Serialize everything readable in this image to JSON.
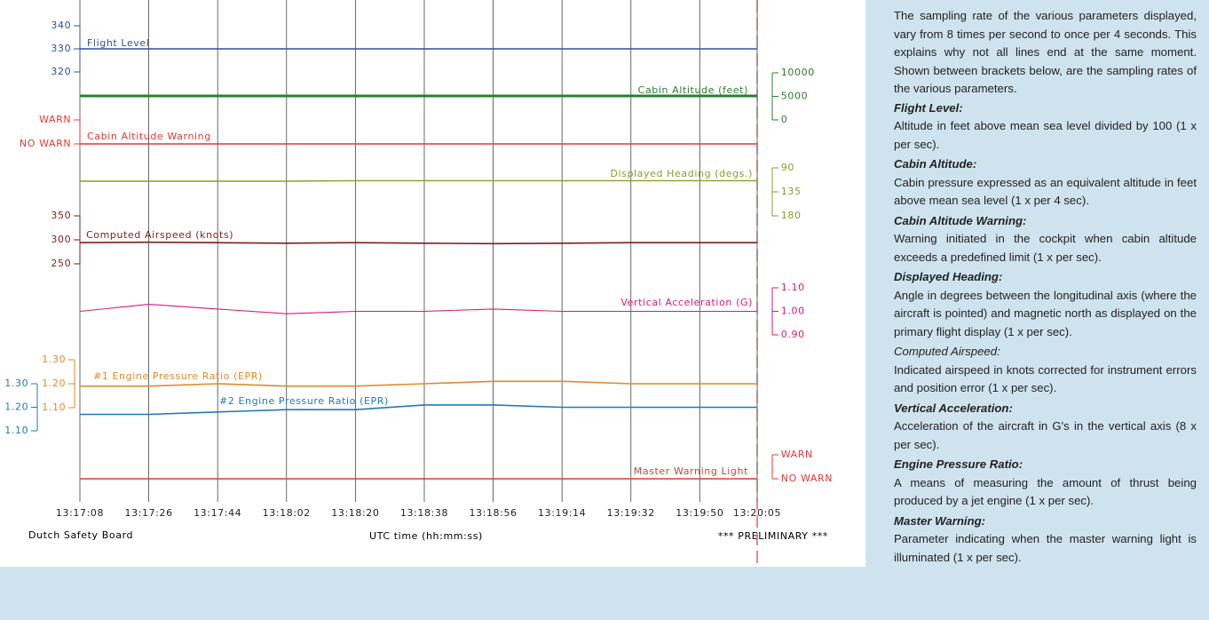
{
  "chart_data": {
    "type": "line",
    "x": [
      "13:17:08",
      "13:17:26",
      "13:17:44",
      "13:18:02",
      "13:18:20",
      "13:18:38",
      "13:18:56",
      "13:19:14",
      "13:19:32",
      "13:19:50",
      "13:20:05"
    ],
    "xlabel": "UTC time (hh:mm:ss)",
    "source": "Dutch Safety Board",
    "note": "*** PRELIMINARY ***",
    "series": [
      {
        "name": "Flight Level",
        "color": "#2f4f9f",
        "values": [
          330,
          330,
          330,
          330,
          330,
          330,
          330,
          330,
          330,
          330,
          330
        ],
        "ylim": [
          320,
          340
        ],
        "yticks": [
          320,
          330,
          340
        ]
      },
      {
        "name": "Cabin Altitude (feet)",
        "color": "#2e7d32",
        "values": [
          5100,
          5100,
          5100,
          5100,
          5100,
          5100,
          5100,
          5100,
          5100,
          5100,
          5100
        ],
        "ylim": [
          0,
          10000
        ],
        "yticks": [
          0,
          5000,
          10000
        ]
      },
      {
        "name": "Cabin Altitude Warning",
        "color": "#e53935",
        "values": [
          0,
          0,
          0,
          0,
          0,
          0,
          0,
          0,
          0,
          0,
          0
        ],
        "ylim": [
          0,
          1
        ],
        "yticks": [
          {
            "value": 1,
            "label": "WARN"
          },
          {
            "value": 0,
            "label": "NO WARN"
          }
        ]
      },
      {
        "name": "Displayed Heading (degs.)",
        "color": "#8d9b2c",
        "values": [
          115,
          115,
          115,
          115,
          114,
          114,
          114,
          114,
          114,
          114,
          114
        ],
        "ylim": [
          180,
          90
        ],
        "yticks": [
          90,
          135,
          180
        ]
      },
      {
        "name": "Computed Airspeed (knots)",
        "color": "#7a1f1f",
        "values": [
          294,
          295,
          294,
          293,
          294,
          293,
          292,
          293,
          294,
          294,
          294
        ],
        "ylim": [
          250,
          350
        ],
        "yticks": [
          250,
          300,
          350
        ]
      },
      {
        "name": "Vertical Acceleration (G)",
        "color": "#d81b7a",
        "values": [
          1.0,
          1.03,
          1.01,
          0.99,
          1.0,
          1.0,
          1.01,
          1.0,
          1.0,
          1.0,
          1.0
        ],
        "ylim": [
          0.9,
          1.1
        ],
        "yticks": [
          {
            "value": 1.1,
            "label": "1.10"
          },
          {
            "value": 1.0,
            "label": "1.00"
          },
          {
            "value": 0.9,
            "label": "0.90"
          }
        ]
      },
      {
        "name": "#1 Engine Pressure Ratio (EPR)",
        "color": "#e08a2a",
        "values": [
          1.19,
          1.19,
          1.2,
          1.19,
          1.19,
          1.2,
          1.21,
          1.21,
          1.2,
          1.2,
          1.2
        ],
        "ylim": [
          1.1,
          1.3
        ],
        "yticks": [
          {
            "value": 1.3,
            "label": "1.30"
          },
          {
            "value": 1.2,
            "label": "1.20"
          },
          {
            "value": 1.1,
            "label": "1.10"
          }
        ]
      },
      {
        "name": "#2 Engine Pressure Ratio (EPR)",
        "color": "#1f7ab8",
        "values": [
          1.17,
          1.17,
          1.18,
          1.19,
          1.19,
          1.21,
          1.21,
          1.2,
          1.2,
          1.2,
          1.2
        ],
        "ylim": [
          1.1,
          1.3
        ],
        "yticks": [
          {
            "value": 1.3,
            "label": "1.30"
          },
          {
            "value": 1.2,
            "label": "1.20"
          },
          {
            "value": 1.1,
            "label": "1.10"
          }
        ]
      },
      {
        "name": "Master Warning Light",
        "color": "#e53935",
        "values": [
          0,
          0,
          0,
          0,
          0,
          0,
          0,
          0,
          0,
          0,
          0
        ],
        "ylim": [
          0,
          1
        ],
        "yticks": [
          {
            "value": 1,
            "label": "WARN"
          },
          {
            "value": 0,
            "label": "NO WARN"
          }
        ]
      }
    ]
  },
  "notes": {
    "intro": "The sampling rate of the various parameters displayed, vary from 8 times per second to once per 4 seconds. This explains why not all lines end at the same moment. Shown between brackets below, are the sampling rates of the various parameters.",
    "items": [
      {
        "heading": "Flight Level:",
        "text": "Altitude in feet above mean sea level divided by 100 (1 x per sec)."
      },
      {
        "heading": "Cabin Altitude:",
        "text": "Cabin pressure expressed as an equivalent altitude in feet above mean sea level (1 x per 4 sec)."
      },
      {
        "heading": "Cabin Altitude Warning:",
        "text": "Warning initiated in the cockpit when cabin altitude exceeds a predefined limit (1 x per sec)."
      },
      {
        "heading": "Displayed Heading:",
        "text": "Angle in degrees between the longitudinal axis (where the aircraft is pointed) and magnetic north as displayed on the primary flight display (1 x per sec)."
      },
      {
        "heading": "Computed Airspeed:",
        "text": "Indicated airspeed in knots corrected for instrument errors and position error (1 x per sec)."
      },
      {
        "heading": "Vertical Acceleration:",
        "text": "Acceleration of the aircraft in G's in the vertical axis (8 x per sec)."
      },
      {
        "heading": "Engine Pressure Ratio:",
        "text": "A means of measuring the amount of thrust being produced by a jet engine (1 x per sec)."
      },
      {
        "heading": "Master Warning:",
        "text": "Parameter indicating when the master warning light is illuminated (1 x per sec)."
      }
    ]
  }
}
